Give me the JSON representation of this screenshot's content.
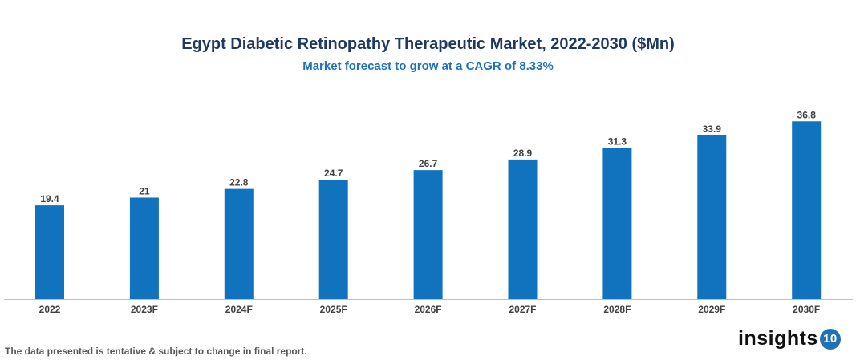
{
  "chart_data": {
    "type": "bar",
    "title": "Egypt Diabetic Retinopathy Therapeutic Market, 2022-2030 ($Mn)",
    "subtitle": "Market forecast to grow at a CAGR of 8.33%",
    "categories": [
      "2022",
      "2023F",
      "2024F",
      "2025F",
      "2026F",
      "2027F",
      "2028F",
      "2029F",
      "2030F"
    ],
    "values": [
      19.4,
      21,
      22.8,
      24.7,
      26.7,
      28.9,
      31.3,
      33.9,
      36.8
    ],
    "labels": [
      "19.4",
      "21",
      "22.8",
      "24.7",
      "26.7",
      "28.9",
      "31.3",
      "33.9",
      "36.8"
    ],
    "xlabel": "",
    "ylabel": "",
    "ylim": [
      0,
      40
    ],
    "grid": false,
    "bar_color": "#1172bd"
  },
  "footer": {
    "note": "The data presented is tentative & subject to change in final report.",
    "logo_text": "insights",
    "logo_badge": "10"
  }
}
